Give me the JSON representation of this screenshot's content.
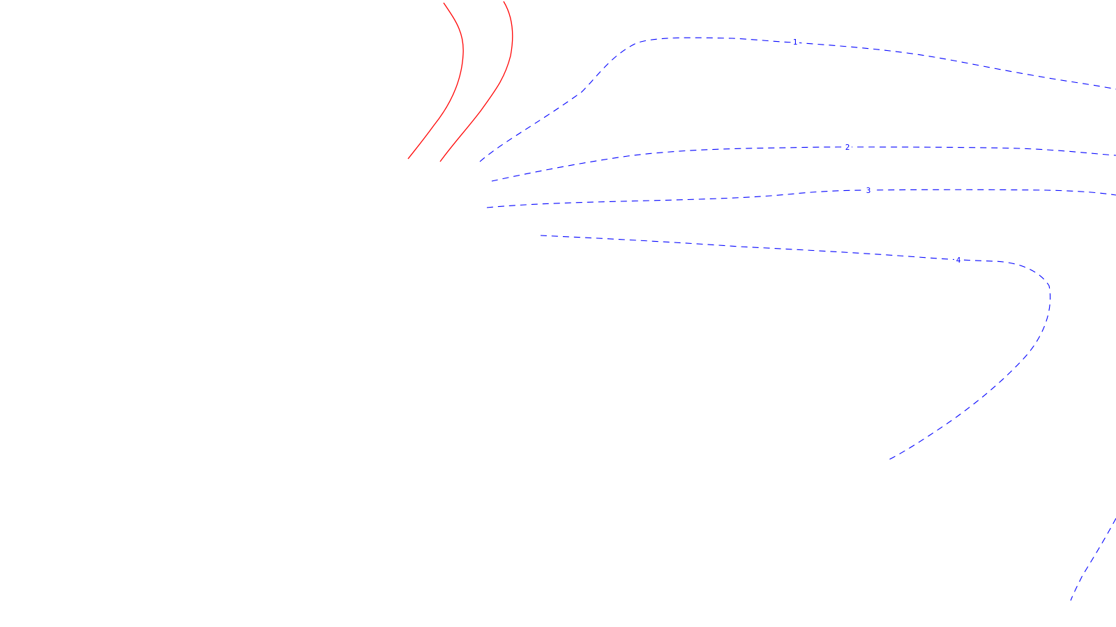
{
  "colors": {
    "background": "#ffffff",
    "solid_contour": "#ff0000",
    "dashed_contour": "#0000ff"
  },
  "contour_labels": {
    "c1": "1",
    "c2": "2",
    "c3": "3",
    "c4": "4"
  }
}
